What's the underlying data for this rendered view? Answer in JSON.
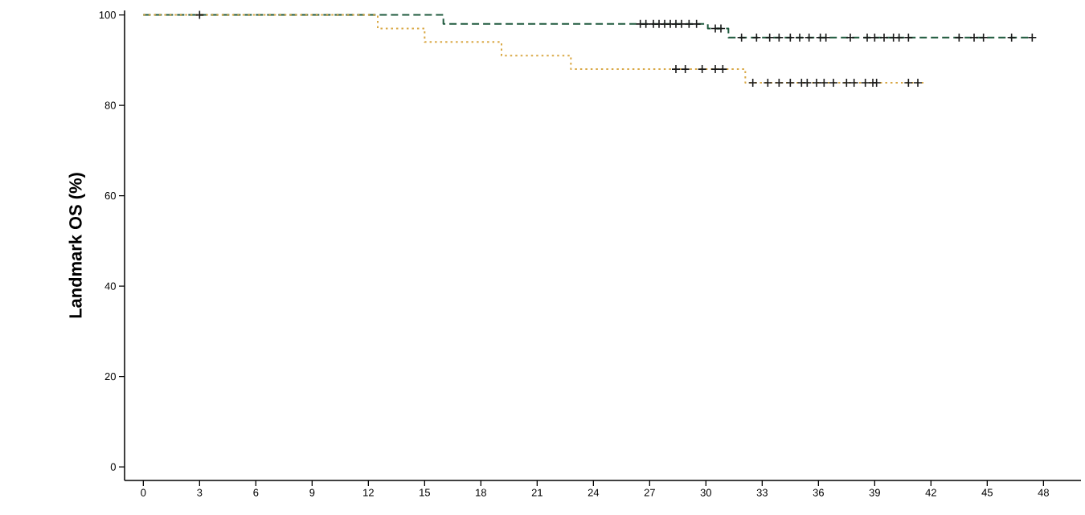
{
  "chart_data": {
    "type": "step",
    "ylabel": "Landmark OS (%)",
    "xlim": [
      -1,
      50
    ],
    "ylim": [
      -3,
      101
    ],
    "xticks": [
      0,
      3,
      6,
      9,
      12,
      15,
      18,
      21,
      24,
      27,
      30,
      33,
      36,
      39,
      42,
      45,
      48
    ],
    "yticks": [
      0,
      20,
      40,
      60,
      80,
      100
    ],
    "grid": false,
    "marker": "none",
    "series": [
      {
        "color": "#1f5a3e",
        "line_style": "dashed",
        "x": [
          0,
          16,
          30.1,
          31.2,
          47.4
        ],
        "values": [
          100,
          98,
          97,
          95,
          95
        ]
      },
      {
        "color": "#d9a845",
        "line_style": "dotted",
        "x": [
          0,
          12.5,
          15,
          19.1,
          22.8,
          32.1,
          41.6
        ],
        "values": [
          100,
          97,
          94,
          91,
          88,
          85,
          85
        ]
      },
      {
        "type": "scatter",
        "color": "#1a1a1a",
        "marker": "cross",
        "x": [
          3,
          26.5,
          26.8,
          27.2,
          27.5,
          27.8,
          28.1,
          28.4,
          28.7,
          29.1,
          29.5,
          30.5,
          30.8,
          31.9,
          32.7,
          33.4,
          33.9,
          34.5,
          35.0,
          35.5,
          36.1,
          36.4,
          37.7,
          38.6,
          39.0,
          39.5,
          40.0,
          40.3,
          40.8,
          43.5,
          44.3,
          44.8,
          46.3,
          47.4
        ],
        "values": [
          100,
          98,
          98,
          98,
          98,
          98,
          98,
          98,
          98,
          98,
          98,
          97,
          97,
          95,
          95,
          95,
          95,
          95,
          95,
          95,
          95,
          95,
          95,
          95,
          95,
          95,
          95,
          95,
          95,
          95,
          95,
          95,
          95,
          95
        ]
      },
      {
        "type": "scatter",
        "color": "#1a1a1a",
        "marker": "cross",
        "x": [
          28.4,
          28.9,
          29.8,
          30.5,
          30.9,
          32.5,
          33.3,
          33.9,
          34.5,
          35.1,
          35.4,
          35.9,
          36.3,
          36.8,
          37.5,
          37.9,
          38.5,
          38.9,
          39.1,
          40.8,
          41.3
        ],
        "values": [
          88,
          88,
          88,
          88,
          88,
          85,
          85,
          85,
          85,
          85,
          85,
          85,
          85,
          85,
          85,
          85,
          85,
          85,
          85,
          85,
          85
        ]
      }
    ]
  }
}
